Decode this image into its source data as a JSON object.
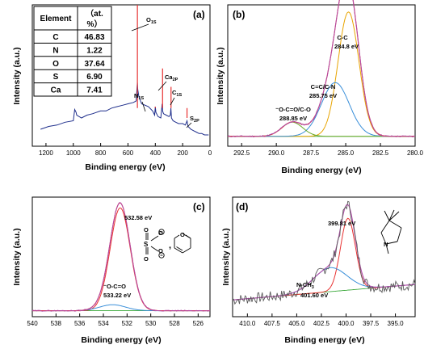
{
  "chart_data": [
    {
      "panel": "(a)",
      "type": "line",
      "xlabel": "Binding energy (eV)",
      "ylabel": "Intensity (a.u.)",
      "xlim": [
        1300,
        0
      ],
      "xticks": [
        "1200",
        "1000",
        "800",
        "600",
        "400",
        "200",
        "0"
      ],
      "series": [
        {
          "color": "#1f2f8c",
          "x": [
            1240,
            1180,
            1120,
            1060,
            1000,
            990,
            980,
            975,
            940,
            900,
            860,
            800,
            760,
            720,
            680,
            640,
            600,
            560,
            540,
            531,
            528,
            520,
            500,
            450,
            420,
            405,
            400,
            396,
            380,
            360,
            350,
            348,
            347,
            340,
            320,
            300,
            290,
            286,
            284,
            282,
            270,
            250,
            230,
            200,
            180,
            168,
            165,
            160,
            140,
            120,
            100,
            80,
            60,
            40,
            20,
            10
          ],
          "y": [
            0.12,
            0.14,
            0.15,
            0.17,
            0.18,
            0.26,
            0.24,
            0.22,
            0.2,
            0.22,
            0.23,
            0.25,
            0.25,
            0.27,
            0.28,
            0.29,
            0.3,
            0.31,
            0.32,
            0.45,
            0.4,
            0.35,
            0.3,
            0.28,
            0.25,
            0.22,
            0.28,
            0.24,
            0.21,
            0.2,
            0.3,
            0.28,
            0.25,
            0.23,
            0.22,
            0.21,
            0.22,
            0.27,
            0.24,
            0.2,
            0.18,
            0.17,
            0.16,
            0.16,
            0.15,
            0.18,
            0.16,
            0.14,
            0.12,
            0.11,
            0.1,
            0.09,
            0.09,
            0.08,
            0.08,
            0.08
          ]
        }
      ],
      "peaks": [
        {
          "label": "O",
          "sub": "1S",
          "x": 531,
          "height": 1.0
        },
        {
          "label": "Ca",
          "sub": "2P",
          "x": 347,
          "height": 0.55
        },
        {
          "label": "N",
          "sub": "1S",
          "x": 400,
          "height": 0.28
        },
        {
          "label": "C",
          "sub": "1S",
          "x": 285,
          "height": 0.42
        },
        {
          "label": "S",
          "sub": "2P",
          "x": 168,
          "height": 0.2
        }
      ],
      "table": {
        "header": [
          "Element",
          "（at.",
          "%）"
        ],
        "rows": [
          [
            "C",
            "46.83"
          ],
          [
            "N",
            "1.22"
          ],
          [
            "O",
            "37.64"
          ],
          [
            "S",
            "6.90"
          ],
          [
            "Ca",
            "7.41"
          ]
        ]
      }
    },
    {
      "panel": "(b)",
      "type": "line",
      "xlabel": "Binding energy (eV)",
      "ylabel": "Intensity (a.u.)",
      "xlim": [
        293.5,
        280
      ],
      "xticks": [
        "292.5",
        "290.0",
        "287.5",
        "285.0",
        "282.5",
        "280.0"
      ],
      "xtick_values": [
        292.5,
        290,
        287.5,
        285,
        282.5,
        280
      ],
      "baseline": 0.07,
      "components": [
        {
          "center": 284.8,
          "sigma": 0.75,
          "amp": 0.88,
          "color": "#e8a400"
        },
        {
          "center": 285.75,
          "sigma": 1.0,
          "amp": 0.38,
          "color": "#3a8fd9"
        },
        {
          "center": 288.85,
          "sigma": 0.75,
          "amp": 0.1,
          "color": "#6aaa2a"
        }
      ],
      "envelope_color": "#e83232",
      "raw_color": "#b04aa8",
      "annotations": [
        {
          "lines": [
            "C-C",
            "284.8 eV"
          ]
        },
        {
          "lines": [
            "C=C/C-N",
            "285.75 eV"
          ]
        },
        {
          "lines": [
            "⁻O-C=O/C-O",
            "288.85 eV"
          ]
        }
      ]
    },
    {
      "panel": "(c)",
      "type": "line",
      "xlabel": "Binding energy (eV)",
      "ylabel": "Intensity (a.u.)",
      "xlim": [
        540,
        525
      ],
      "xticks": [
        "540",
        "538",
        "536",
        "534",
        "532",
        "530",
        "528",
        "526"
      ],
      "xtick_values": [
        540,
        538,
        536,
        534,
        532,
        530,
        528,
        526
      ],
      "baseline": 0.05,
      "components": [
        {
          "center": 532.58,
          "sigma": 0.85,
          "amp": 0.86,
          "color": "#e83232"
        },
        {
          "center": 533.22,
          "sigma": 1.1,
          "amp": 0.05,
          "color": "#3a8fd9"
        }
      ],
      "envelope_color": "#e83232",
      "raw_color": "#b04aa8",
      "annotations": [
        {
          "lines": [
            "532.58 eV"
          ]
        },
        {
          "lines": [
            "⁻O-C=O",
            "533.22 eV"
          ]
        }
      ]
    },
    {
      "panel": "(d)",
      "type": "line",
      "xlabel": "Binding energy (eV)",
      "ylabel": "Intensity (a.u.)",
      "xlim": [
        411.5,
        393
      ],
      "xticks": [
        "410.0",
        "407.5",
        "405.0",
        "402.5",
        "400.0",
        "397.5",
        "395.0"
      ],
      "xtick_values": [
        410,
        407.5,
        405,
        402.5,
        400,
        397.5,
        395
      ],
      "baseline_range": [
        0.14,
        0.27
      ],
      "components": [
        {
          "center": 399.81,
          "sigma": 0.75,
          "amp": 0.6,
          "color": "#e83232"
        },
        {
          "center": 401.6,
          "sigma": 1.7,
          "amp": 0.2,
          "color": "#3a8fd9"
        }
      ],
      "envelope_color": "#b04aa8",
      "raw_color": "#5a5a5a",
      "annotations": [
        {
          "lines": [
            "399.81 eV"
          ]
        },
        {
          "lines": [
            "N-CH",
            "401.60 eV"
          ],
          "sub": "3"
        }
      ]
    }
  ]
}
